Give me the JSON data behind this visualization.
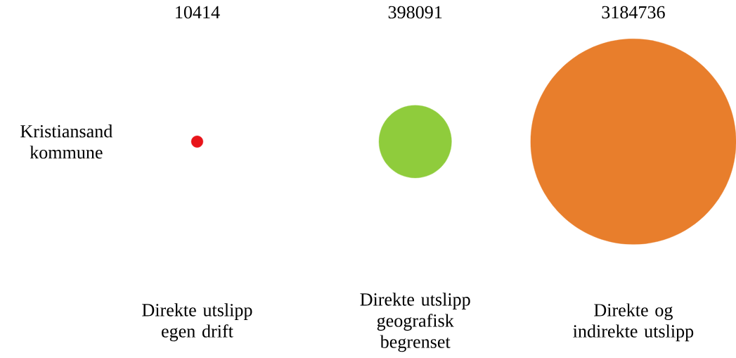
{
  "chart_data": {
    "type": "other",
    "categories": [
      "Direkte utslipp egen drift",
      "Direkte utslipp geografisk begrenset",
      "Direkte og indirekte utslipp"
    ],
    "values": [
      10414,
      398091,
      3184736
    ],
    "colors": [
      "#e8141a",
      "#8fcc3c",
      "#e87e2c"
    ],
    "ylabel": "Kristiansand kommune",
    "data_labels": true
  }
}
